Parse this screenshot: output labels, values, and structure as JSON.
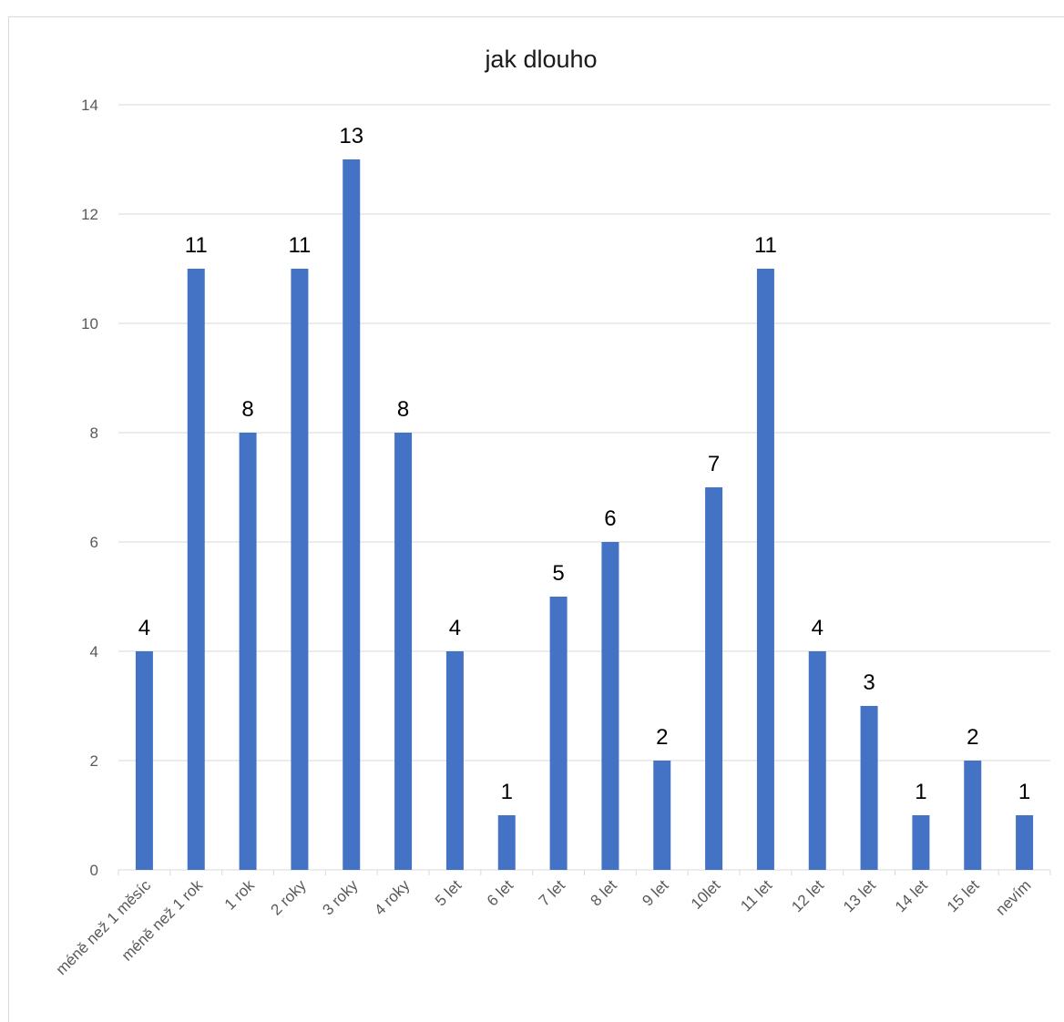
{
  "chart_data": {
    "type": "bar",
    "title": "jak dlouho",
    "xlabel": "",
    "ylabel": "",
    "ylim": [
      0,
      14
    ],
    "yticks": [
      0,
      2,
      4,
      6,
      8,
      10,
      12,
      14
    ],
    "grid": true,
    "legend": "none",
    "bar_color": "#4472C4",
    "categories": [
      "méně než 1 měsíc",
      "méně než 1 rok",
      "1 rok",
      "2 roky",
      "3 roky",
      "4 roky",
      "5 let",
      "6 let",
      "7 let",
      "8 let",
      "9 let",
      "10let",
      "11 let",
      "12 let",
      "13 let",
      "14 let",
      "15 let",
      "nevím"
    ],
    "values": [
      4,
      11,
      8,
      11,
      13,
      8,
      4,
      1,
      5,
      6,
      2,
      7,
      11,
      4,
      3,
      1,
      2,
      1
    ]
  }
}
